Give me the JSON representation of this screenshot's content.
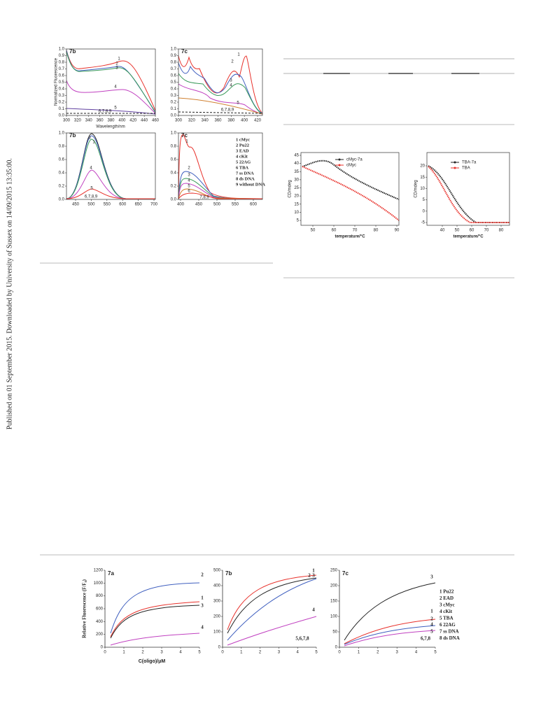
{
  "side_note": "Published on 01 September 2015. Downloaded by University of Sussex on 14/09/2015 13:35:00.",
  "figure_top": {
    "panels": [
      {
        "label": "7b",
        "ylabel": "Normalized Fluorescence",
        "xlabel": "Wavelength/nm",
        "yticks": [
          "0.0",
          "0.1",
          "0.2",
          "0.3",
          "0.4",
          "0.5",
          "0.6",
          "0.7",
          "0.8",
          "0.9",
          "1.0"
        ],
        "xticks": [
          "300",
          "320",
          "340",
          "360",
          "380",
          "400",
          "420",
          "440",
          "460"
        ],
        "curve_labels": [
          "1",
          "2",
          "3",
          "4",
          "5",
          "6,7,8,9"
        ]
      },
      {
        "label": "7c",
        "yticks": [
          "0.0",
          "0.1",
          "0.2",
          "0.3",
          "0.4",
          "0.5",
          "0.6",
          "0.7",
          "0.8",
          "0.9",
          "1.0"
        ],
        "xticks": [
          "300",
          "320",
          "340",
          "360",
          "380",
          "400",
          "420"
        ],
        "curve_labels": [
          "1",
          "2",
          "3",
          "4",
          "5",
          "6,7,8,9"
        ]
      },
      {
        "label": "7b",
        "yticks": [
          "0.0",
          "0.2",
          "0.4",
          "0.6",
          "0.8",
          "1.0"
        ],
        "xticks": [
          "450",
          "500",
          "550",
          "600",
          "650",
          "700"
        ],
        "curve_labels": [
          "3",
          "1",
          "4",
          "5",
          "6,7,8,9"
        ]
      },
      {
        "label": "7c",
        "yticks": [
          "0.0",
          "0.2",
          "0.4",
          "0.6",
          "0.8",
          "1.0"
        ],
        "xticks": [
          "400",
          "450",
          "500",
          "550",
          "600"
        ],
        "curve_labels": [
          "1",
          "2",
          "3",
          "4",
          "5",
          "6",
          "7,8,9"
        ]
      }
    ],
    "legend": [
      "1 cMyc",
      "2 Pu22",
      "3 EAD",
      "4 cKit",
      "5 22AG",
      "6 TBA",
      "7 ss DNA",
      "8 ds DNA",
      "9 without DNA"
    ]
  },
  "figure_cd": {
    "panels": [
      {
        "ylabel": "CD/mdeg",
        "xlabel": "temperature/°C",
        "yticks": [
          "5",
          "10",
          "15",
          "20",
          "25",
          "30",
          "35",
          "40",
          "45"
        ],
        "xticks": [
          "50",
          "60",
          "70",
          "80",
          "90"
        ],
        "legend": [
          "cMyc-7a",
          "cMyc"
        ]
      },
      {
        "ylabel": "CD/mdeg",
        "xlabel": "temperature/°C",
        "yticks": [
          "-5",
          "0",
          "5",
          "10",
          "15",
          "20"
        ],
        "xticks": [
          "40",
          "50",
          "60",
          "70",
          "80"
        ],
        "legend": [
          "TBA-7a",
          "TBA"
        ]
      }
    ]
  },
  "figure_bottom": {
    "ylabel": "Relative Fluorescence (F/F₀)",
    "xlabel": "C(oligo)/μM",
    "panels": [
      {
        "label": "7a",
        "yticks": [
          "0",
          "200",
          "400",
          "600",
          "800",
          "1000",
          "1200"
        ],
        "xticks": [
          "0",
          "1",
          "2",
          "3",
          "4",
          "5"
        ],
        "curve_labels": [
          "2",
          "1",
          "3",
          "4"
        ]
      },
      {
        "label": "7b",
        "yticks": [
          "0",
          "100",
          "200",
          "300",
          "400",
          "500"
        ],
        "xticks": [
          "0",
          "1",
          "2",
          "3",
          "4",
          "5"
        ],
        "curve_labels": [
          "1",
          "2",
          "3",
          "4",
          "5,6,7,8"
        ]
      },
      {
        "label": "7c",
        "yticks": [
          "0",
          "50",
          "100",
          "150",
          "200",
          "250"
        ],
        "xticks": [
          "0",
          "1",
          "2",
          "3",
          "4",
          "5"
        ],
        "curve_labels": [
          "3",
          "1",
          "2",
          "4",
          "5",
          "6,7,8"
        ]
      }
    ],
    "legend": [
      "1 Pu22",
      "2 EAD",
      "3 cMyc",
      "4 cKit",
      "5 TBA",
      "6 22AG",
      "7 ss DNA",
      "8 ds DNA"
    ]
  }
}
